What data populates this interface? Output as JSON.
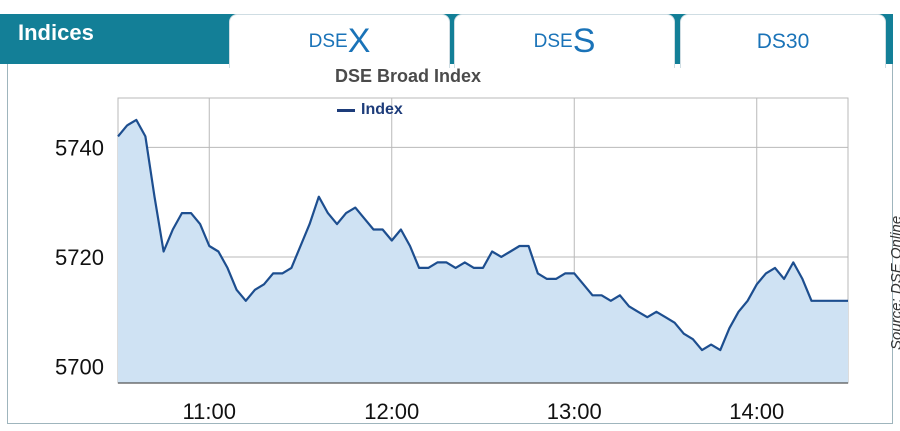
{
  "header": {
    "title": "Indices"
  },
  "tabs": [
    {
      "prefix": "DSE",
      "letter": "X"
    },
    {
      "prefix": "DSE",
      "letter": "S"
    },
    {
      "label": "DS30"
    }
  ],
  "source_note": "Source: DSE Online",
  "colors": {
    "header": "#137f97",
    "line": "#1d4e8f",
    "fill": "#cfe2f3",
    "grid": "#b9b9b9"
  },
  "chart_data": {
    "type": "area",
    "title": "DSE Broad Index",
    "series": [
      {
        "name": "Index",
        "x": [
          "10:30",
          "10:33",
          "10:36",
          "10:39",
          "10:42",
          "10:45",
          "10:48",
          "10:51",
          "10:54",
          "10:57",
          "11:00",
          "11:03",
          "11:06",
          "11:09",
          "11:12",
          "11:15",
          "11:18",
          "11:21",
          "11:24",
          "11:27",
          "11:30",
          "11:33",
          "11:36",
          "11:39",
          "11:42",
          "11:45",
          "11:48",
          "11:51",
          "11:54",
          "11:57",
          "12:00",
          "12:03",
          "12:06",
          "12:09",
          "12:12",
          "12:15",
          "12:18",
          "12:21",
          "12:24",
          "12:27",
          "12:30",
          "12:33",
          "12:36",
          "12:39",
          "12:42",
          "12:45",
          "12:48",
          "12:51",
          "12:54",
          "12:57",
          "13:00",
          "13:03",
          "13:06",
          "13:09",
          "13:12",
          "13:15",
          "13:18",
          "13:21",
          "13:24",
          "13:27",
          "13:30",
          "13:33",
          "13:36",
          "13:39",
          "13:42",
          "13:45",
          "13:48",
          "13:51",
          "13:54",
          "13:57",
          "14:00",
          "14:03",
          "14:06",
          "14:09",
          "14:12",
          "14:15",
          "14:18",
          "14:21",
          "14:24",
          "14:27",
          "14:30"
        ],
        "values": [
          5742,
          5744,
          5745,
          5742,
          5731,
          5721,
          5725,
          5728,
          5728,
          5726,
          5722,
          5721,
          5718,
          5714,
          5712,
          5714,
          5715,
          5717,
          5717,
          5718,
          5722,
          5726,
          5731,
          5728,
          5726,
          5728,
          5729,
          5727,
          5725,
          5725,
          5723,
          5725,
          5722,
          5718,
          5718,
          5719,
          5719,
          5718,
          5719,
          5718,
          5718,
          5721,
          5720,
          5721,
          5722,
          5722,
          5717,
          5716,
          5716,
          5717,
          5717,
          5715,
          5713,
          5713,
          5712,
          5713,
          5711,
          5710,
          5709,
          5710,
          5709,
          5708,
          5706,
          5705,
          5703,
          5704,
          5703,
          5707,
          5710,
          5712,
          5715,
          5717,
          5718,
          5716,
          5719,
          5716,
          5712,
          5712,
          5712,
          5712,
          5712
        ]
      }
    ],
    "xticks": [
      "11:00",
      "12:00",
      "13:00",
      "14:00"
    ],
    "yticks": [
      5700,
      5720,
      5740
    ],
    "ylim": [
      5697,
      5749
    ],
    "xlim": [
      "10:30",
      "14:30"
    ],
    "grid": true,
    "legend_position": "top-center"
  }
}
